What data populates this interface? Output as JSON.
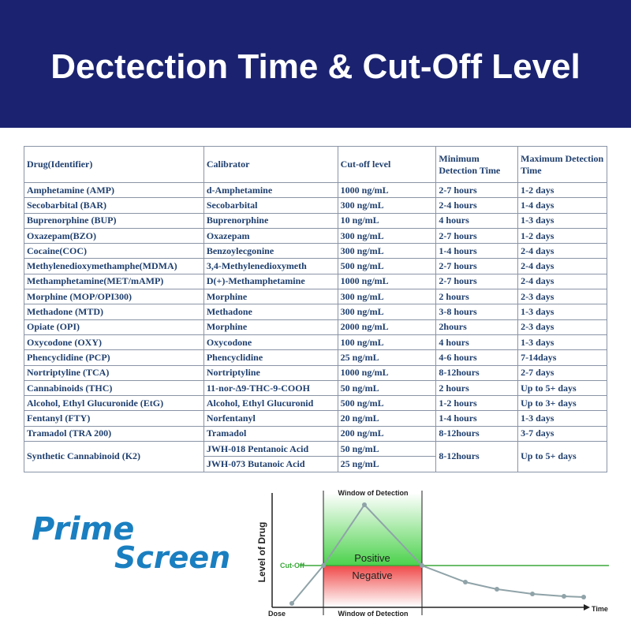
{
  "header": {
    "title": "Dectection Time & Cut-Off Level"
  },
  "table": {
    "columns": [
      "Drug(Identifier)",
      "Calibrator",
      "Cut-off level",
      "Minimum Detection Time",
      "Maximum Detection Time"
    ],
    "rows": [
      [
        "Amphetamine (AMP)",
        "d-Amphetamine",
        "1000 ng/mL",
        "2-7 hours",
        "1-2 days"
      ],
      [
        "Secobarbital (BAR)",
        "Secobarbital",
        "300 ng/mL",
        "2-4 hours",
        "1-4 days"
      ],
      [
        "Buprenorphine (BUP)",
        "Buprenorphine",
        "10 ng/mL",
        "4 hours",
        "1-3 days"
      ],
      [
        "Oxazepam(BZO)",
        "Oxazepam",
        "300 ng/mL",
        "2-7 hours",
        "1-2 days"
      ],
      [
        "Cocaine(COC)",
        "Benzoylecgonine",
        "300 ng/mL",
        "1-4 hours",
        "2-4 days"
      ],
      [
        "Methylenedioxymethamphe(MDMA)",
        "3,4-Methylenedioxymeth",
        "500 ng/mL",
        "2-7 hours",
        "2-4 days"
      ],
      [
        "Methamphetamine(MET/mAMP)",
        "D(+)-Methamphetamine",
        "1000 ng/mL",
        "2-7 hours",
        "2-4 days"
      ],
      [
        "Morphine (MOP/OPI300)",
        "Morphine",
        "300 ng/mL",
        "2 hours",
        "2-3 days"
      ],
      [
        "Methadone (MTD)",
        "Methadone",
        "300 ng/mL",
        "3-8 hours",
        "1-3 days"
      ],
      [
        "Opiate (OPI)",
        "Morphine",
        "2000 ng/mL",
        "2hours",
        "2-3 days"
      ],
      [
        "Oxycodone (OXY)",
        "Oxycodone",
        "100 ng/mL",
        "4 hours",
        "1-3 days"
      ],
      [
        "Phencyclidine (PCP)",
        "Phencyclidine",
        "25 ng/mL",
        "4-6 hours",
        "7-14days"
      ],
      [
        "Nortriptyline (TCA)",
        "Nortriptyline",
        "1000 ng/mL",
        "8-12hours",
        "2-7 days"
      ],
      [
        "Cannabinoids (THC)",
        "11-nor-Δ9-THC-9-COOH",
        "50 ng/mL",
        "2 hours",
        "Up to 5+ days"
      ],
      [
        "Alcohol, Ethyl Glucuronide (EtG)",
        "Alcohol, Ethyl Glucuronid",
        "500 ng/mL",
        "1-2 hours",
        "Up to 3+ days"
      ],
      [
        "Fentanyl (FTY)",
        "Norfentanyl",
        "20 ng/mL",
        "1-4 hours",
        "1-3 days"
      ],
      [
        "Tramadol (TRA 200)",
        "Tramadol",
        "200 ng/mL",
        "8-12hours",
        "3-7 days"
      ]
    ],
    "split_row": {
      "drug": "Synthetic Cannabinoid (K2)",
      "calibrators": [
        "JWH-018 Pentanoic Acid",
        "JWH-073 Butanoic Acid"
      ],
      "cutoffs": [
        "50 ng/mL",
        "25 ng/mL"
      ],
      "min": "8-12hours",
      "max": "Up to 5+ days"
    }
  },
  "logo": {
    "line1": "Prime",
    "line2": "Screen"
  },
  "diagram": {
    "window_top": "Window of Detection",
    "y_label": "Level of Drug",
    "cutoff": "Cut-Off",
    "positive": "Positive",
    "negative": "Negative",
    "dose": "Dose",
    "window_bottom": "Window of Detection",
    "x_label": "Time"
  }
}
